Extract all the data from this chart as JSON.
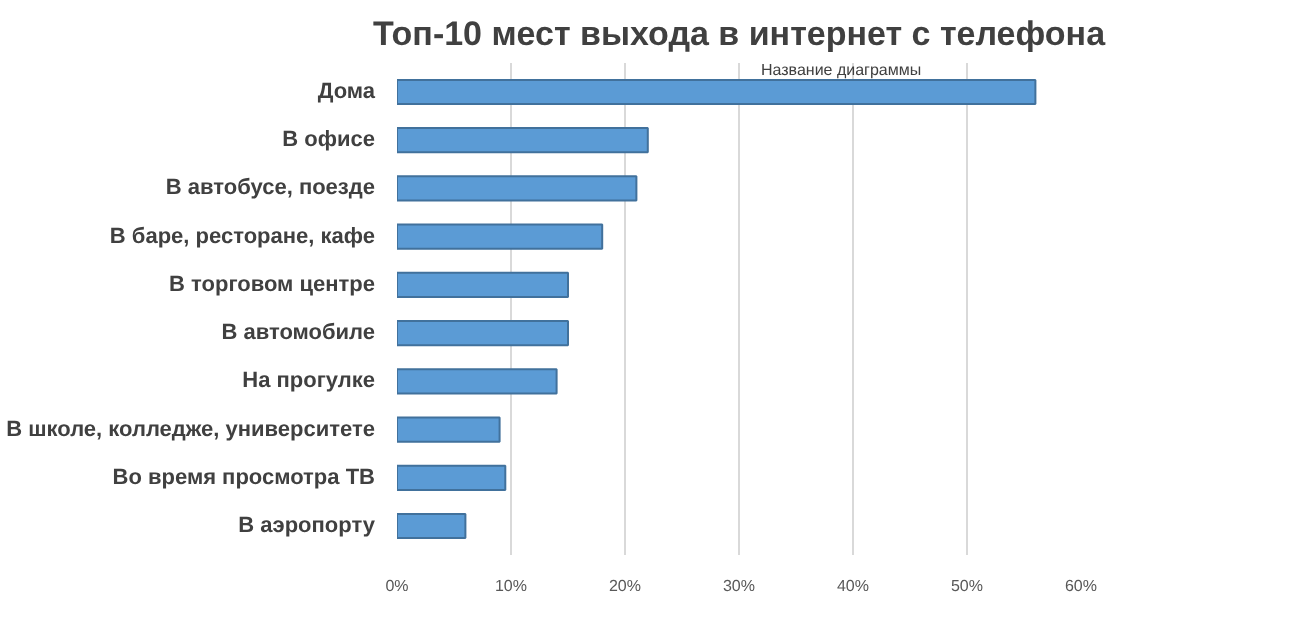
{
  "chart_data": {
    "type": "bar",
    "orientation": "horizontal",
    "title": "Топ-10 мест выхода в интернет с телефона",
    "categories": [
      "Дома",
      "В офисе",
      "В автобусе, поезде",
      "В баре, ресторане, кафе",
      "В торговом центре",
      "В автомобиле",
      "На прогулке",
      "В школе, колледже, университете",
      "Во время просмотра ТВ",
      "В аэропорту"
    ],
    "values": [
      56,
      22,
      21,
      18,
      15,
      15,
      14,
      9,
      9.5,
      6
    ],
    "color": "#5b9bd5",
    "xlim": [
      0,
      60
    ],
    "xticks": [
      {
        "value": 0,
        "label": "0%"
      },
      {
        "value": 10,
        "label": "10%"
      },
      {
        "value": 20,
        "label": "20%"
      },
      {
        "value": 30,
        "label": "30%"
      },
      {
        "value": 40,
        "label": "40%"
      },
      {
        "value": 50,
        "label": "50%"
      },
      {
        "value": 60,
        "label": "60%"
      }
    ],
    "grid": "x",
    "annotations": [
      "Название диаграммы"
    ]
  }
}
